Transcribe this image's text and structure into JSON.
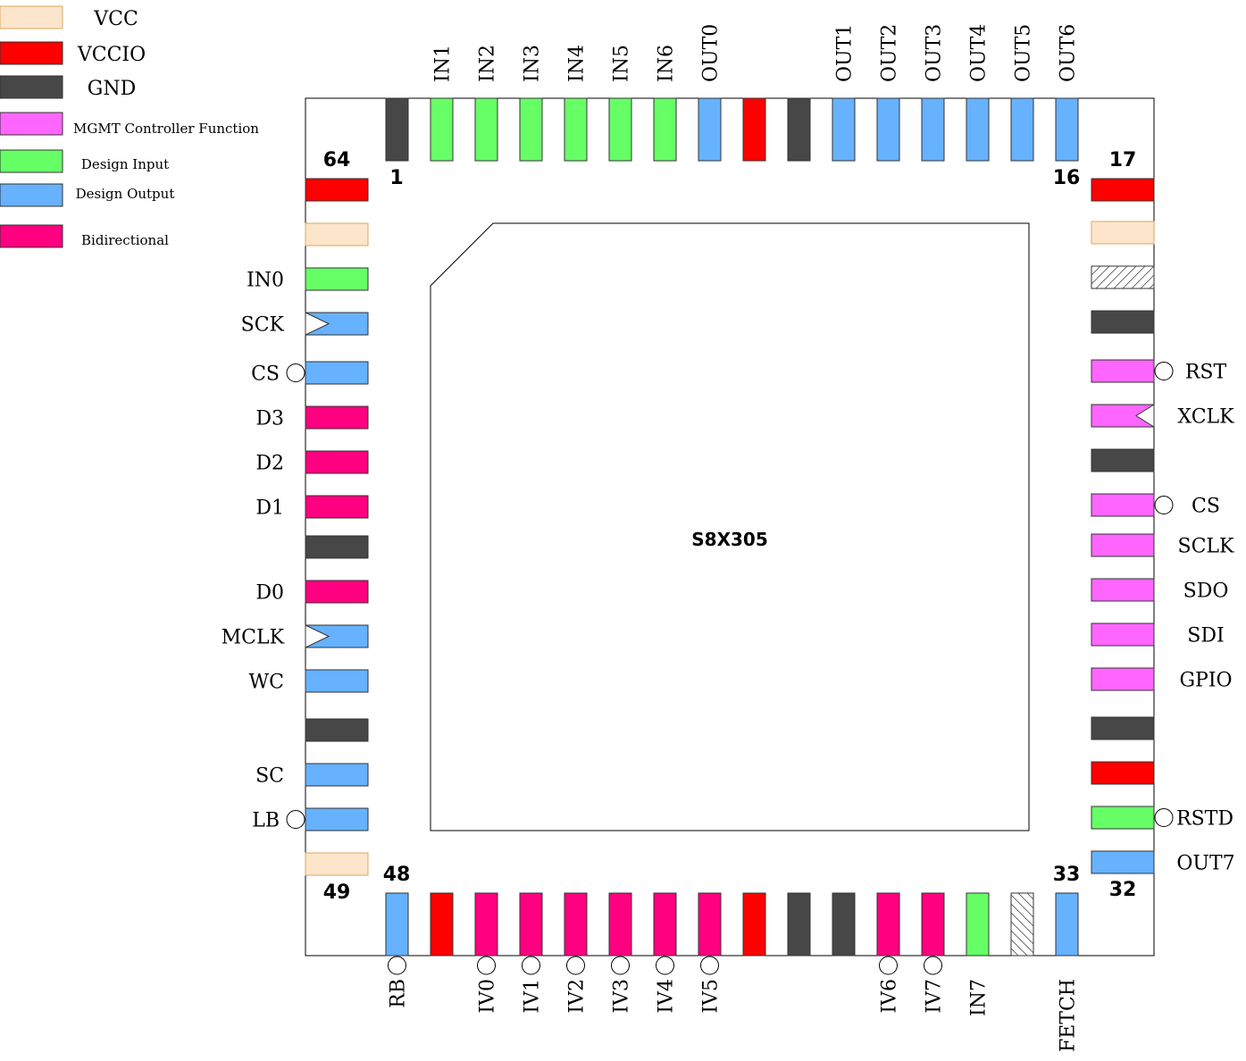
{
  "colors": {
    "vcc": "#fde5cb",
    "vcc_stroke": "#d7a95f",
    "vccio": "#ff0000",
    "gnd": "#474747",
    "mgmt": "#ff66ff",
    "input": "#66ff66",
    "output": "#66b2ff",
    "bidir": "#ff0080",
    "nc": "#ffffff"
  },
  "legend": [
    {
      "type": "vcc",
      "label": "VCC"
    },
    {
      "type": "vccio",
      "label": "VCCIO"
    },
    {
      "type": "gnd",
      "label": "GND"
    },
    {
      "type": "mgmt",
      "label": "MGMT Controller Function"
    },
    {
      "type": "input",
      "label": "Design Input"
    },
    {
      "type": "output",
      "label": "Design Output"
    },
    {
      "type": "bidir",
      "label": "Bidirectional"
    }
  ],
  "chip": {
    "name": "S8X305",
    "corner_numbers": {
      "top_left": "1",
      "top_right": "16",
      "right_top": "17",
      "right_bottom": "32",
      "bottom_right": "33",
      "bottom_left": "48",
      "left_bottom": "49",
      "left_top": "64"
    }
  },
  "pins": {
    "top": [
      {
        "type": "gnd",
        "label": ""
      },
      {
        "type": "input",
        "label": "IN1"
      },
      {
        "type": "input",
        "label": "IN2"
      },
      {
        "type": "input",
        "label": "IN3"
      },
      {
        "type": "input",
        "label": "IN4"
      },
      {
        "type": "input",
        "label": "IN5"
      },
      {
        "type": "input",
        "label": "IN6"
      },
      {
        "type": "output",
        "label": "OUT0"
      },
      {
        "type": "vccio",
        "label": ""
      },
      {
        "type": "gnd",
        "label": ""
      },
      {
        "type": "output",
        "label": "OUT1"
      },
      {
        "type": "output",
        "label": "OUT2"
      },
      {
        "type": "output",
        "label": "OUT3"
      },
      {
        "type": "output",
        "label": "OUT4"
      },
      {
        "type": "output",
        "label": "OUT5"
      },
      {
        "type": "output",
        "label": "OUT6"
      }
    ],
    "right": [
      {
        "type": "vccio",
        "label": ""
      },
      {
        "type": "vcc",
        "label": ""
      },
      {
        "type": "nc",
        "label": ""
      },
      {
        "type": "gnd",
        "label": ""
      },
      {
        "type": "mgmt",
        "label": "RST",
        "marker": "bubble"
      },
      {
        "type": "mgmt",
        "label": "XCLK",
        "marker": "clock"
      },
      {
        "type": "gnd",
        "label": ""
      },
      {
        "type": "mgmt",
        "label": "CS",
        "marker": "bubble"
      },
      {
        "type": "mgmt",
        "label": "SCLK"
      },
      {
        "type": "mgmt",
        "label": "SDO"
      },
      {
        "type": "mgmt",
        "label": "SDI"
      },
      {
        "type": "mgmt",
        "label": "GPIO"
      },
      {
        "type": "gnd",
        "label": ""
      },
      {
        "type": "vccio",
        "label": ""
      },
      {
        "type": "input",
        "label": "RSTD",
        "marker": "bubble"
      },
      {
        "type": "output",
        "label": "OUT7"
      }
    ],
    "bottom": [
      {
        "type": "output",
        "label": "FETCH"
      },
      {
        "type": "nc",
        "label": ""
      },
      {
        "type": "input",
        "label": "IN7"
      },
      {
        "type": "bidir",
        "label": "IV7",
        "marker": "bubble"
      },
      {
        "type": "bidir",
        "label": "IV6",
        "marker": "bubble"
      },
      {
        "type": "gnd",
        "label": ""
      },
      {
        "type": "gnd",
        "label": ""
      },
      {
        "type": "vccio",
        "label": ""
      },
      {
        "type": "bidir",
        "label": "IV5",
        "marker": "bubble"
      },
      {
        "type": "bidir",
        "label": "IV4",
        "marker": "bubble"
      },
      {
        "type": "bidir",
        "label": "IV3",
        "marker": "bubble"
      },
      {
        "type": "bidir",
        "label": "IV2",
        "marker": "bubble"
      },
      {
        "type": "bidir",
        "label": "IV1",
        "marker": "bubble"
      },
      {
        "type": "bidir",
        "label": "IV0",
        "marker": "bubble"
      },
      {
        "type": "vccio",
        "label": ""
      },
      {
        "type": "output",
        "label": "RB",
        "marker": "bubble"
      }
    ],
    "left": [
      {
        "type": "vcc",
        "label": ""
      },
      {
        "type": "output",
        "label": "LB",
        "marker": "bubble"
      },
      {
        "type": "output",
        "label": "SC"
      },
      {
        "type": "gnd",
        "label": ""
      },
      {
        "type": "output",
        "label": "WC"
      },
      {
        "type": "output",
        "label": "MCLK",
        "marker": "clock"
      },
      {
        "type": "bidir",
        "label": "D0"
      },
      {
        "type": "gnd",
        "label": ""
      },
      {
        "type": "bidir",
        "label": "D1"
      },
      {
        "type": "bidir",
        "label": "D2"
      },
      {
        "type": "bidir",
        "label": "D3"
      },
      {
        "type": "output",
        "label": "CS",
        "marker": "bubble"
      },
      {
        "type": "output",
        "label": "SCK",
        "marker": "clock"
      },
      {
        "type": "input",
        "label": "IN0"
      },
      {
        "type": "vcc",
        "label": ""
      },
      {
        "type": "vccio",
        "label": ""
      }
    ]
  }
}
